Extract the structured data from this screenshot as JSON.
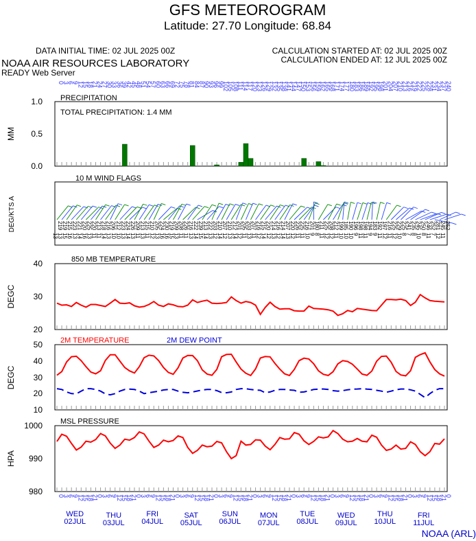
{
  "header": {
    "title": "GFS METEOROGRAM",
    "subtitle": "Latitude: 27.70 Longitude:  68.84",
    "initial_time": "DATA INITIAL TIME: 02 JUL 2025 00Z",
    "calc_started": "CALCULATION STARTED AT: 02 JUL 2025 00Z",
    "calc_ended": "CALCULATION ENDED AT: 12 JUL 2025 00Z",
    "lab": "NOAA AIR RESOURCES LABORATORY",
    "server": "READY Web Server"
  },
  "footer": {
    "credit": "NOAA (ARL)"
  },
  "colors": {
    "red": "#ff0000",
    "blue": "#0000dd",
    "green": "#007700",
    "wind_green": "#008800",
    "wind_blue": "#2244ff",
    "tick_blue": "#3333ff"
  },
  "hours": [
    0,
    3,
    6,
    9,
    12,
    15,
    18,
    21,
    24,
    27,
    30,
    33,
    36,
    39,
    42,
    45,
    48,
    51,
    54,
    57,
    60,
    63,
    66,
    69,
    72,
    75,
    78,
    81,
    84,
    87,
    90,
    93,
    96,
    99,
    102,
    105,
    108,
    111,
    114,
    117,
    120,
    123,
    126,
    129,
    132,
    135,
    138,
    141,
    144,
    147,
    150,
    153,
    156,
    159,
    162,
    165,
    168,
    171,
    174,
    177,
    180,
    183,
    186,
    189,
    192,
    195,
    198,
    201,
    204,
    207,
    210,
    213,
    216,
    219,
    222,
    225,
    228,
    231,
    234,
    237,
    240
  ],
  "hour_labels": [
    "0",
    "3",
    "6",
    "9",
    "12",
    "15",
    "18",
    "21",
    "24",
    "27",
    "30",
    "33",
    "36",
    "39",
    "42",
    "45",
    "48",
    "51",
    "54",
    "57",
    "60",
    "63",
    "66",
    "69",
    "72",
    "75",
    "78",
    "81",
    "84",
    "87",
    "90",
    "93",
    "96",
    "99",
    "102",
    "105",
    "108",
    "111",
    "114",
    "117",
    "120",
    "123",
    "126",
    "129",
    "132",
    "135",
    "138",
    "141",
    "144",
    "147",
    "150",
    "153",
    "156",
    "159",
    "162",
    "165",
    "168",
    "171",
    "174",
    "177",
    "180",
    "183",
    "186",
    "189",
    "192",
    "195",
    "198",
    "201",
    "204",
    "207",
    "210",
    "213",
    "216",
    "219",
    "222",
    "225",
    "228",
    "231",
    "234",
    "237",
    "240"
  ],
  "utc_labels": [
    "0",
    "3",
    "6",
    "9",
    "12",
    "15",
    "18",
    "21",
    "0",
    "3",
    "6",
    "9",
    "12",
    "15",
    "18",
    "21",
    "0",
    "3",
    "6",
    "9",
    "12",
    "15",
    "18",
    "21",
    "0",
    "3",
    "6",
    "9",
    "12",
    "15",
    "18",
    "21",
    "0",
    "3",
    "6",
    "9",
    "12",
    "15",
    "18",
    "21",
    "0",
    "3",
    "6",
    "9",
    "12",
    "15",
    "18",
    "21",
    "0",
    "3",
    "6",
    "9",
    "12",
    "15",
    "18",
    "21",
    "0",
    "3",
    "6",
    "9",
    "12",
    "15",
    "18",
    "21",
    "0",
    "3",
    "6",
    "9",
    "12",
    "15",
    "18",
    "21",
    "0",
    "3",
    "6",
    "9",
    "12",
    "15",
    "18",
    "21",
    "0"
  ],
  "days": [
    {
      "dow": "WED",
      "date": "02JUL"
    },
    {
      "dow": "THU",
      "date": "03JUL"
    },
    {
      "dow": "FRI",
      "date": "04JUL"
    },
    {
      "dow": "SAT",
      "date": "05JUL"
    },
    {
      "dow": "SUN",
      "date": "06JUL"
    },
    {
      "dow": "MON",
      "date": "07JUL"
    },
    {
      "dow": "TUE",
      "date": "08JUL"
    },
    {
      "dow": "WED",
      "date": "09JUL"
    },
    {
      "dow": "THU",
      "date": "10JUL"
    },
    {
      "dow": "FRI",
      "date": "11JUL"
    }
  ],
  "chart_data": [
    {
      "type": "bar",
      "panel": "precipitation",
      "title": "PRECIPITATION",
      "annotation": "TOTAL PRECIPITATION:   1.4 MM",
      "ylabel": "MM",
      "ylim": [
        0,
        1.0
      ],
      "yticks": [
        "0.0",
        "0.5",
        "1.0"
      ],
      "bars": [
        {
          "hour": 42,
          "value": 0.34
        },
        {
          "hour": 84,
          "value": 0.32
        },
        {
          "hour": 99,
          "value": 0.02
        },
        {
          "hour": 114,
          "value": 0.06
        },
        {
          "hour": 117,
          "value": 0.35
        },
        {
          "hour": 120,
          "value": 0.12
        },
        {
          "hour": 153,
          "value": 0.12
        },
        {
          "hour": 162,
          "value": 0.07
        },
        {
          "hour": 165,
          "value": 0.01
        }
      ]
    },
    {
      "type": "wind_flags",
      "panel": "wind",
      "title": "10 M  WIND FLAGS",
      "ylabel": "DEG/KTS  A",
      "direction_labels": [
        "219",
        "219",
        "215",
        "223",
        "221",
        "220",
        "225",
        "220",
        "213",
        "218",
        "216",
        "206",
        "212",
        "223",
        "224",
        "226",
        "209",
        "213",
        "215",
        "210",
        "205",
        "224",
        "230",
        "219",
        "209",
        "208",
        "226",
        "216",
        "222",
        "239",
        "213",
        "222",
        "203",
        "210",
        "207",
        "210",
        "212",
        "201",
        "205",
        "203",
        "207",
        "216",
        "215",
        "220",
        "214",
        "216",
        "214",
        "207",
        "220",
        "226",
        "225",
        "216",
        "201",
        "180",
        "211",
        "225",
        "208",
        "212",
        "199",
        "185",
        "190",
        "196",
        "198",
        "198",
        "194",
        "183",
        "192",
        "197",
        "216",
        "225",
        "229",
        "225",
        "241",
        "235",
        "245",
        "250",
        "246",
        "252",
        "281",
        "245",
        "252"
      ],
      "speed_labels": [
        "13",
        "13",
        "15",
        "16",
        "13",
        "14",
        "16",
        "13",
        "11",
        "11",
        "14",
        "13",
        "10",
        "10",
        "13",
        "14",
        "13",
        "11",
        "13",
        "11",
        "12",
        "13",
        "16",
        "16",
        "15",
        "13",
        "11",
        "11",
        "13",
        "14",
        "15",
        "14",
        "13",
        "12",
        "14",
        "12",
        "13",
        "14",
        "12",
        "11",
        "13",
        "11",
        "12",
        "14",
        "12",
        "13",
        "12",
        "14",
        "13",
        "12",
        "11",
        "11",
        "10",
        "9",
        "8",
        "11",
        "12",
        "12",
        "11",
        "10",
        "10",
        "10",
        "9",
        "11",
        "11",
        "9",
        "9",
        "11",
        "12",
        "11",
        "12",
        "10",
        "8",
        "7",
        "8",
        "10",
        "8",
        "11",
        "7",
        "12",
        "11"
      ]
    },
    {
      "type": "line",
      "panel": "t850",
      "title": "850 MB  TEMPERATURE",
      "ylabel": "DEGC",
      "ylim": [
        20,
        40
      ],
      "yticks": [
        "20",
        "30",
        "40"
      ],
      "series": [
        {
          "name": "",
          "color": "#ff0000",
          "values": [
            28.0,
            27.4,
            27.5,
            27.0,
            28.2,
            27.4,
            26.8,
            27.6,
            27.6,
            27.3,
            27.0,
            28.0,
            29.1,
            28.0,
            27.9,
            28.1,
            27.2,
            26.8,
            27.0,
            27.6,
            28.5,
            27.4,
            27.0,
            27.8,
            27.5,
            27.0,
            26.9,
            27.4,
            29.0,
            28.2,
            28.6,
            28.9,
            28.0,
            27.9,
            28.0,
            28.2,
            29.9,
            28.8,
            28.0,
            28.5,
            28.2,
            27.4,
            24.6,
            26.7,
            28.3,
            27.0,
            26.2,
            26.3,
            26.3,
            25.7,
            25.6,
            25.6,
            27.1,
            26.4,
            26.3,
            26.2,
            26.0,
            25.6,
            24.3,
            24.8,
            25.8,
            25.4,
            26.4,
            26.2,
            26.0,
            25.8,
            25.7,
            27.4,
            29.1,
            29.1,
            29.0,
            29.2,
            28.8,
            27.3,
            28.3,
            30.6,
            29.6,
            28.8,
            28.6,
            28.5,
            28.4
          ]
        }
      ]
    },
    {
      "type": "line",
      "panel": "t2m",
      "title": "",
      "ylabel": "DEGC",
      "ylim": [
        10,
        50
      ],
      "yticks": [
        "10",
        "20",
        "30",
        "40",
        "50"
      ],
      "series": [
        {
          "name": "2M TEMPERATURE",
          "color": "#ff0000",
          "values": [
            31.2,
            33.5,
            39.4,
            42.6,
            42.9,
            40.2,
            36.5,
            33.2,
            32.1,
            34.0,
            40.3,
            43.8,
            43.8,
            39.9,
            36.0,
            33.9,
            32.6,
            36.5,
            42.0,
            43.5,
            43.1,
            40.2,
            36.0,
            33.0,
            31.8,
            35.8,
            41.8,
            43.4,
            43.3,
            40.2,
            34.5,
            32.0,
            31.2,
            34.8,
            42.6,
            44.0,
            44.1,
            39.4,
            35.0,
            32.5,
            31.1,
            35.1,
            41.8,
            42.7,
            42.5,
            38.5,
            35.0,
            32.1,
            31.1,
            34.8,
            40.2,
            41.7,
            41.2,
            38.3,
            33.9,
            31.8,
            31.1,
            33.4,
            38.2,
            40.2,
            39.7,
            38.0,
            35.0,
            32.0,
            31.2,
            33.8,
            39.8,
            42.8,
            43.0,
            39.2,
            33.6,
            31.4,
            30.9,
            34.0,
            42.2,
            43.9,
            45.0,
            39.4,
            34.7,
            32.1,
            30.7
          ]
        },
        {
          "name": "2M  DEW POINT",
          "color": "#0000dd",
          "dashed": true,
          "values": [
            23.0,
            22.5,
            21.0,
            20.0,
            19.8,
            21.5,
            23.0,
            23.0,
            22.5,
            21.5,
            19.8,
            19.2,
            20.0,
            21.5,
            22.5,
            22.7,
            22.5,
            21.5,
            20.0,
            20.5,
            21.0,
            21.5,
            22.2,
            22.5,
            22.5,
            21.5,
            20.8,
            20.5,
            21.0,
            21.6,
            22.2,
            22.5,
            22.5,
            21.8,
            20.6,
            20.5,
            21.0,
            22.5,
            23.0,
            23.0,
            22.5,
            22.2,
            22.0,
            20.5,
            21.0,
            22.0,
            22.5,
            22.5,
            22.2,
            22.0,
            20.8,
            21.0,
            21.7,
            22.5,
            22.7,
            22.8,
            22.5,
            21.8,
            21.5,
            21.8,
            22.3,
            22.7,
            22.8,
            23.0,
            22.7,
            22.5,
            22.0,
            21.5,
            20.8,
            21.5,
            22.3,
            22.8,
            22.8,
            22.3,
            21.5,
            19.5,
            17.5,
            20.0,
            22.0,
            23.0,
            23.0
          ]
        }
      ]
    },
    {
      "type": "line",
      "panel": "mslp",
      "title": "MSL PRESSURE",
      "ylabel": "HPA",
      "ylim": [
        980,
        1000
      ],
      "yticks": [
        "980",
        "990",
        "1000"
      ],
      "series": [
        {
          "name": "",
          "color": "#ff0000",
          "values": [
            995.2,
            997.4,
            996.8,
            994.6,
            992.6,
            993.5,
            995.3,
            995.0,
            995.8,
            997.6,
            996.9,
            994.7,
            993.1,
            994.1,
            995.9,
            995.6,
            996.4,
            998.1,
            997.5,
            995.3,
            993.4,
            994.1,
            995.6,
            995.1,
            995.5,
            996.9,
            996.4,
            993.4,
            991.6,
            992.5,
            994.1,
            993.6,
            993.8,
            995.2,
            994.8,
            992.1,
            990.0,
            990.9,
            995.3,
            994.1,
            994.3,
            995.7,
            995.6,
            993.8,
            992.7,
            994.3,
            996.4,
            995.9,
            996.0,
            997.9,
            997.4,
            995.4,
            994.3,
            995.2,
            996.6,
            996.3,
            996.6,
            998.5,
            997.6,
            995.9,
            995.1,
            995.3,
            996.1,
            995.3,
            995.1,
            997.1,
            996.5,
            994.1,
            992.5,
            992.9,
            994.1,
            992.9,
            993.1,
            995.1,
            994.3,
            992.1,
            990.9,
            992.1,
            994.6,
            994.4,
            996.0
          ]
        }
      ]
    }
  ]
}
